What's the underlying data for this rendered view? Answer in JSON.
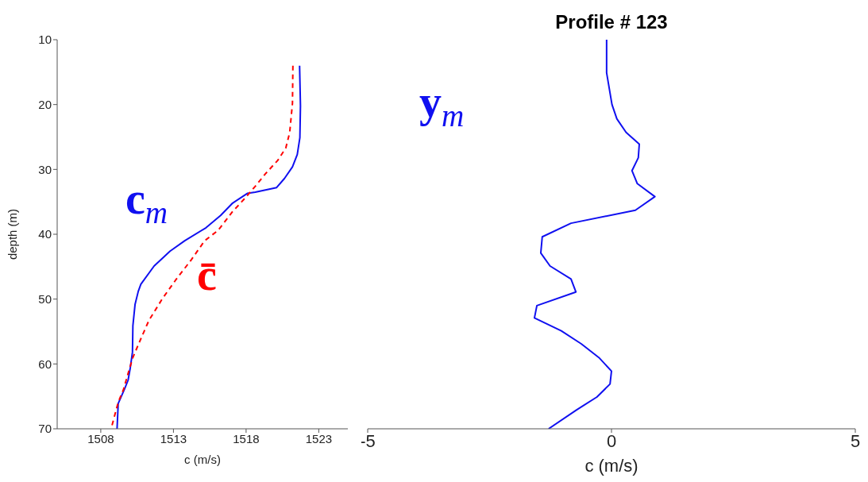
{
  "chart_data": [
    {
      "type": "line",
      "xlabel": "c (m/s)",
      "ylabel": "depth (m)",
      "xlim": [
        1505,
        1525
      ],
      "xticks": [
        1508,
        1513,
        1518,
        1523
      ],
      "ylim": [
        70,
        10
      ],
      "yticks": [
        10,
        20,
        30,
        40,
        50,
        60,
        70
      ],
      "grid": false,
      "legend": false,
      "marker": "none",
      "series": [
        {
          "name": "c$_{m}$",
          "color": "#1010f0",
          "line_style": "solid",
          "x": [
            1521.68,
            1521.74,
            1521.7,
            1521.52,
            1521.19,
            1520.64,
            1520.1,
            1518.63,
            1518.08,
            1517.07,
            1516.25,
            1515.24,
            1513.78,
            1512.77,
            1511.67,
            1510.76,
            1510.58,
            1510.36,
            1510.21,
            1510.18,
            1510.03,
            1509.88,
            1509.63,
            1509.2,
            1509.12
          ],
          "values": [
            14.0,
            20.2,
            25.1,
            27.7,
            29.6,
            31.4,
            32.8,
            33.5,
            33.7,
            35.2,
            37.1,
            39.0,
            41.0,
            42.6,
            44.9,
            47.7,
            48.8,
            50.8,
            54.1,
            58.2,
            60.6,
            62.5,
            63.9,
            66.1,
            70
          ]
        },
        {
          "name": "c̄",
          "color": "#ff0000",
          "line_style": "dashed",
          "x": [
            1521.22,
            1521.19,
            1521.0,
            1520.73,
            1520.18,
            1519.36,
            1518.63,
            1517.9,
            1517.07,
            1516.07,
            1515.15,
            1514.24,
            1513.14,
            1512.22,
            1511.31,
            1510.76,
            1510.21,
            1509.94,
            1509.57,
            1509.2,
            1508.71
          ],
          "values": [
            14.0,
            19.8,
            24.3,
            26.7,
            28.6,
            30.6,
            32.6,
            34.5,
            36.5,
            39.4,
            41.0,
            43.9,
            47.1,
            50.0,
            53.3,
            56.1,
            59.0,
            61.0,
            63.9,
            65.9,
            70
          ]
        }
      ]
    },
    {
      "type": "line",
      "title": "Profile # 123",
      "xlabel": "c (m/s)",
      "xlim": [
        -5,
        5
      ],
      "xticks": [
        -5,
        0,
        5
      ],
      "ylim": [
        70,
        10
      ],
      "tick_labels": "x",
      "grid": false,
      "legend": false,
      "marker": "none",
      "series": [
        {
          "name": "y$_{m}$",
          "color": "#1010f0",
          "line_style": "solid",
          "x": [
            -0.1,
            -0.1,
            0.01,
            0.11,
            0.3,
            0.57,
            0.55,
            0.42,
            0.53,
            0.89,
            0.49,
            -0.83,
            -1.42,
            -1.45,
            -1.26,
            -0.83,
            -0.73,
            -1.53,
            -1.58,
            -1.03,
            -0.62,
            -0.26,
            0.0,
            -0.03,
            -0.3,
            -0.72,
            -1.29
          ],
          "values": [
            10,
            15.1,
            20.0,
            22.2,
            24.3,
            26.1,
            28.2,
            30.2,
            32.2,
            34.2,
            36.3,
            38.3,
            40.4,
            42.9,
            44.9,
            46.9,
            48.9,
            51.0,
            52.9,
            54.9,
            56.9,
            59.0,
            61.1,
            63.1,
            65.1,
            67.1,
            70
          ]
        }
      ]
    }
  ]
}
